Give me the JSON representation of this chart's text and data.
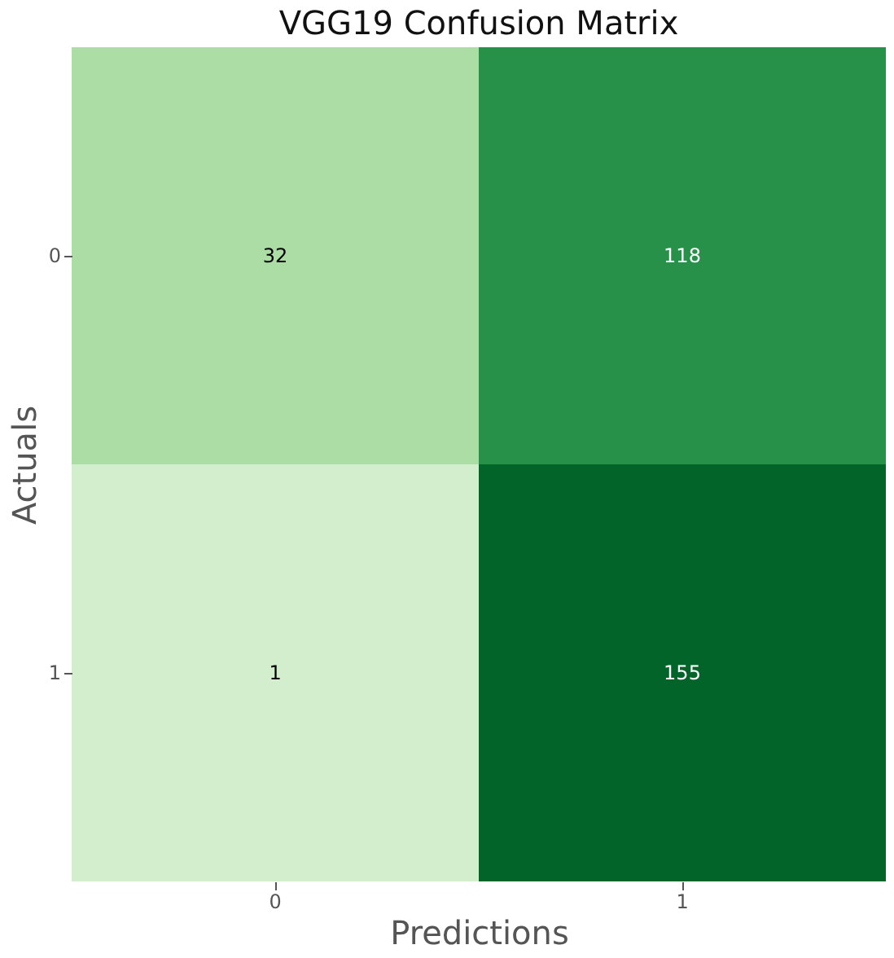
{
  "chart_data": {
    "type": "heatmap",
    "title": "VGG19 Confusion Matrix",
    "xlabel": "Predictions",
    "ylabel": "Actuals",
    "categories": [
      "0",
      "1"
    ],
    "y_categories": [
      "0",
      "1"
    ],
    "cells": [
      [
        32,
        118
      ],
      [
        1,
        155
      ]
    ],
    "data_labels": true,
    "grid": false,
    "legend": false
  }
}
